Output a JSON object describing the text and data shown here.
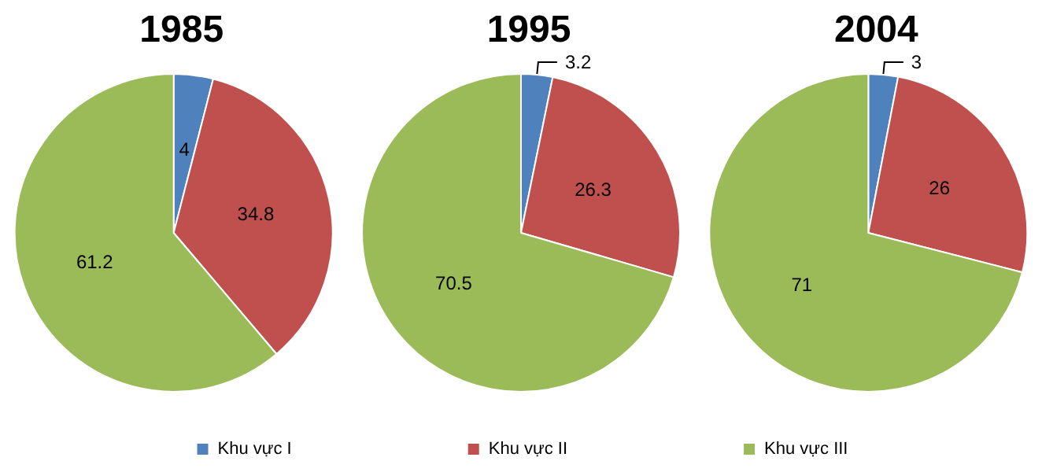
{
  "chart_data": {
    "type": "pie",
    "categories": [
      "Khu vực I",
      "Khu vực II",
      "Khu vực III"
    ],
    "colors": [
      "#4f81bd",
      "#c0504d",
      "#9bbb59"
    ],
    "data_labels": true,
    "legend": "bottom",
    "series": [
      {
        "name": "1985",
        "values": [
          4,
          34.8,
          61.2
        ]
      },
      {
        "name": "1995",
        "values": [
          3.2,
          26.3,
          70.5
        ]
      },
      {
        "name": "2004",
        "values": [
          3,
          26,
          71
        ]
      }
    ]
  }
}
